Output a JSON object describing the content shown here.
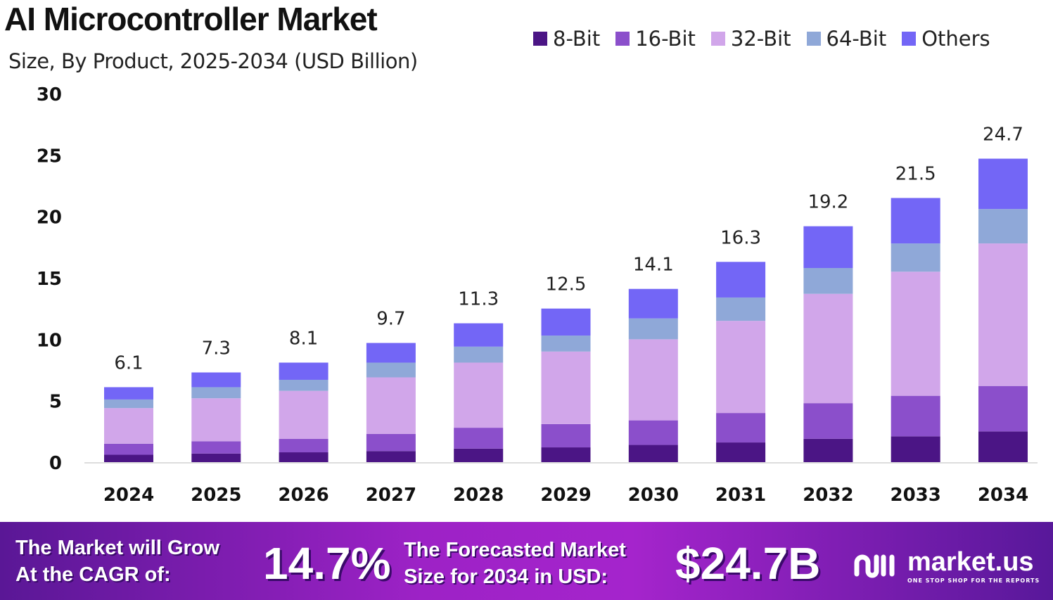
{
  "chart_data": {
    "type": "bar",
    "stacked": true,
    "title": "AI Microcontroller Market",
    "subtitle": "Size, By Product, 2025-2034 (USD Billion)",
    "xlabel": "",
    "ylabel": "",
    "ylim": [
      0,
      30
    ],
    "yticks": [
      "0",
      "5",
      "10",
      "15",
      "20",
      "25",
      "30"
    ],
    "grid": false,
    "legend_position": "top-right",
    "categories": [
      "2024",
      "2025",
      "2026",
      "2027",
      "2028",
      "2029",
      "2030",
      "2031",
      "2032",
      "2033",
      "2034"
    ],
    "totals": [
      "6.1",
      "7.3",
      "8.1",
      "9.7",
      "11.3",
      "12.5",
      "14.1",
      "16.3",
      "19.2",
      "21.5",
      "24.7"
    ],
    "series": [
      {
        "name": "8-Bit",
        "color": "#4b1585",
        "values": [
          0.6,
          0.7,
          0.8,
          0.9,
          1.1,
          1.2,
          1.4,
          1.6,
          1.9,
          2.1,
          2.5
        ]
      },
      {
        "name": "16-Bit",
        "color": "#8b4fcb",
        "values": [
          0.9,
          1.0,
          1.1,
          1.4,
          1.7,
          1.9,
          2.0,
          2.4,
          2.9,
          3.3,
          3.7
        ]
      },
      {
        "name": "32-Bit",
        "color": "#d1a6ea",
        "values": [
          2.9,
          3.5,
          3.9,
          4.6,
          5.3,
          5.9,
          6.6,
          7.5,
          8.9,
          10.1,
          11.6
        ]
      },
      {
        "name": "64-Bit",
        "color": "#8fa8d8",
        "values": [
          0.7,
          0.9,
          0.9,
          1.2,
          1.3,
          1.3,
          1.7,
          1.9,
          2.1,
          2.3,
          2.8
        ]
      },
      {
        "name": "Others",
        "color": "#7366f6",
        "values": [
          1.0,
          1.2,
          1.4,
          1.6,
          1.9,
          2.2,
          2.4,
          2.9,
          3.4,
          3.7,
          4.1
        ]
      }
    ]
  },
  "footer": {
    "cagr_text_1": "The Market will Grow",
    "cagr_text_2": "At the CAGR of:",
    "cagr_value": "14.7%",
    "forecast_text_1": "The Forecasted Market",
    "forecast_text_2": "Size for 2034 in USD:",
    "forecast_value": "$24.7B",
    "brand": "market.us",
    "tagline": "ONE STOP SHOP FOR THE REPORTS"
  }
}
